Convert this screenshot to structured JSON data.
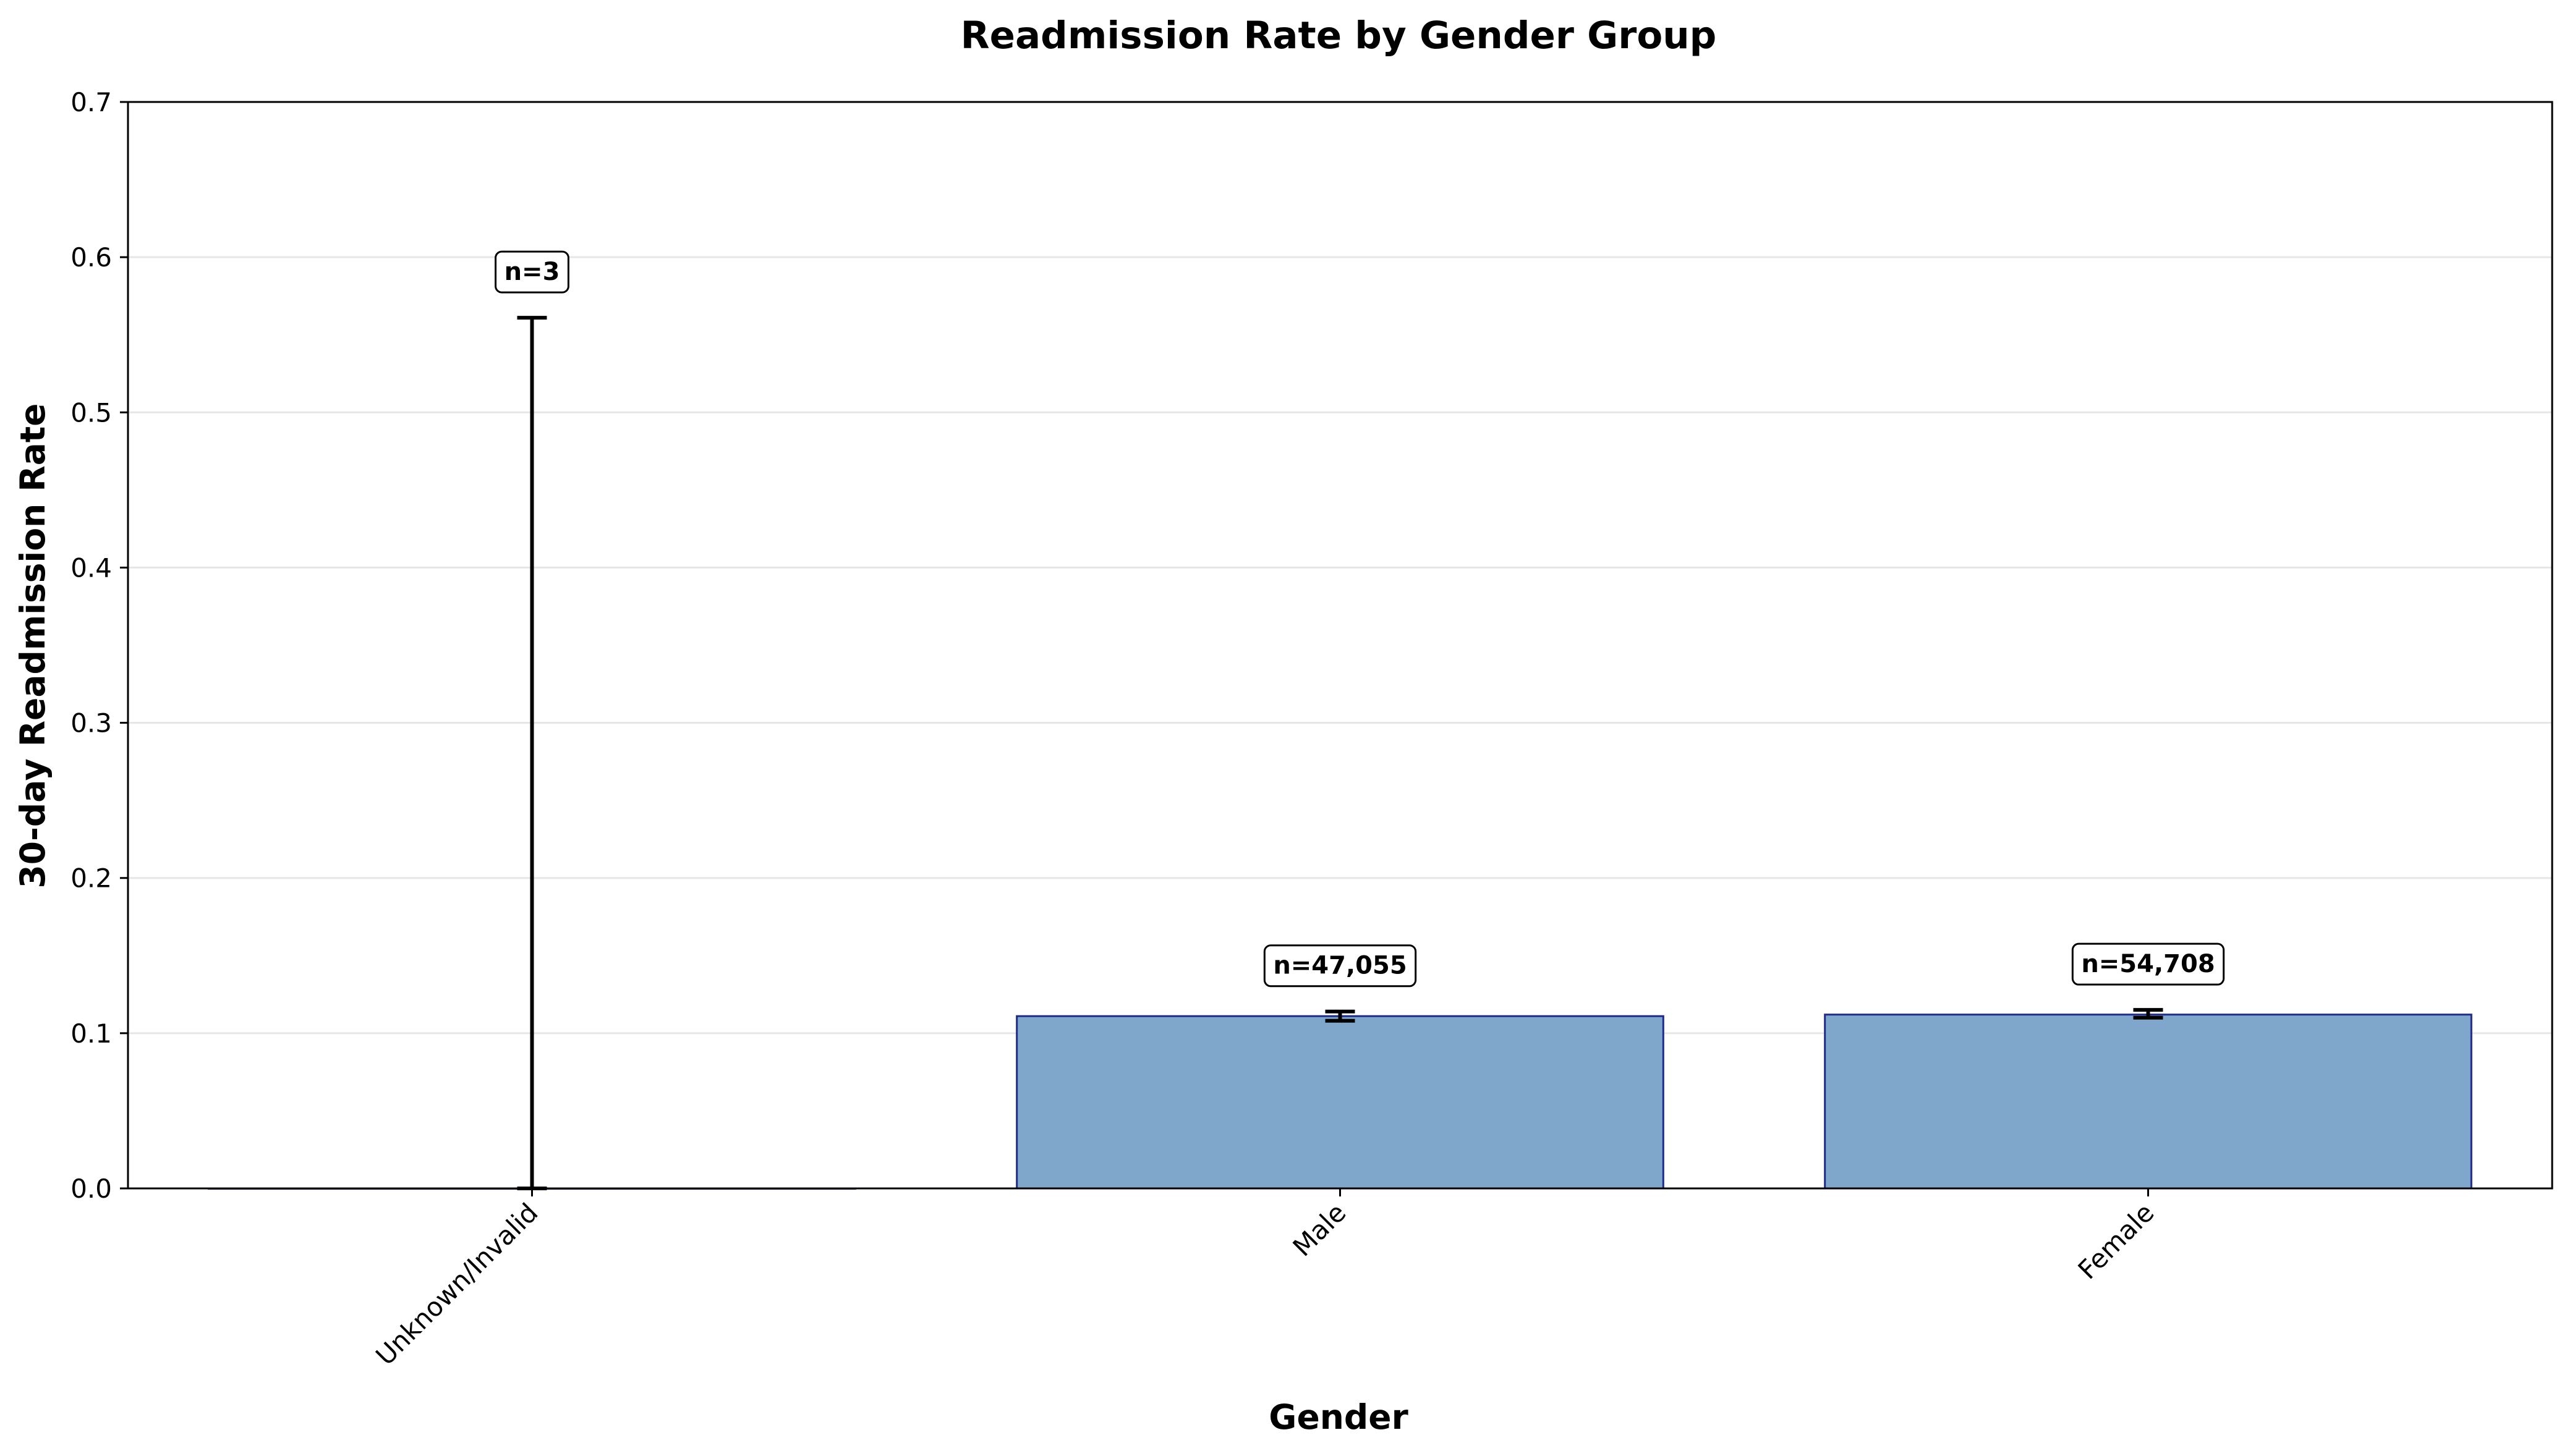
{
  "chart_data": {
    "type": "bar",
    "title": "Readmission Rate by Gender Group",
    "xlabel": "Gender",
    "ylabel": "30-day Readmission Rate",
    "categories": [
      "Unknown/Invalid",
      "Male",
      "Female"
    ],
    "values": [
      0.0,
      0.111,
      0.112
    ],
    "error_low": [
      0.0,
      0.108,
      0.11
    ],
    "error_high": [
      0.561,
      0.114,
      0.115
    ],
    "annotations": [
      "n=3",
      "n=47,055",
      "n=54,708"
    ],
    "ylim": [
      0,
      0.7
    ],
    "yticks": [
      0.0,
      0.1,
      0.2,
      0.3,
      0.4,
      0.5,
      0.6,
      0.7
    ],
    "ytick_labels": [
      "0.0",
      "0.1",
      "0.2",
      "0.3",
      "0.4",
      "0.5",
      "0.6",
      "0.7"
    ],
    "grid": "y",
    "colors": {
      "bar_fill": "#7fa7cb",
      "bar_edge": "#1f2a8a",
      "error_bar": "#000000",
      "grid": "#e6e6e6"
    }
  }
}
